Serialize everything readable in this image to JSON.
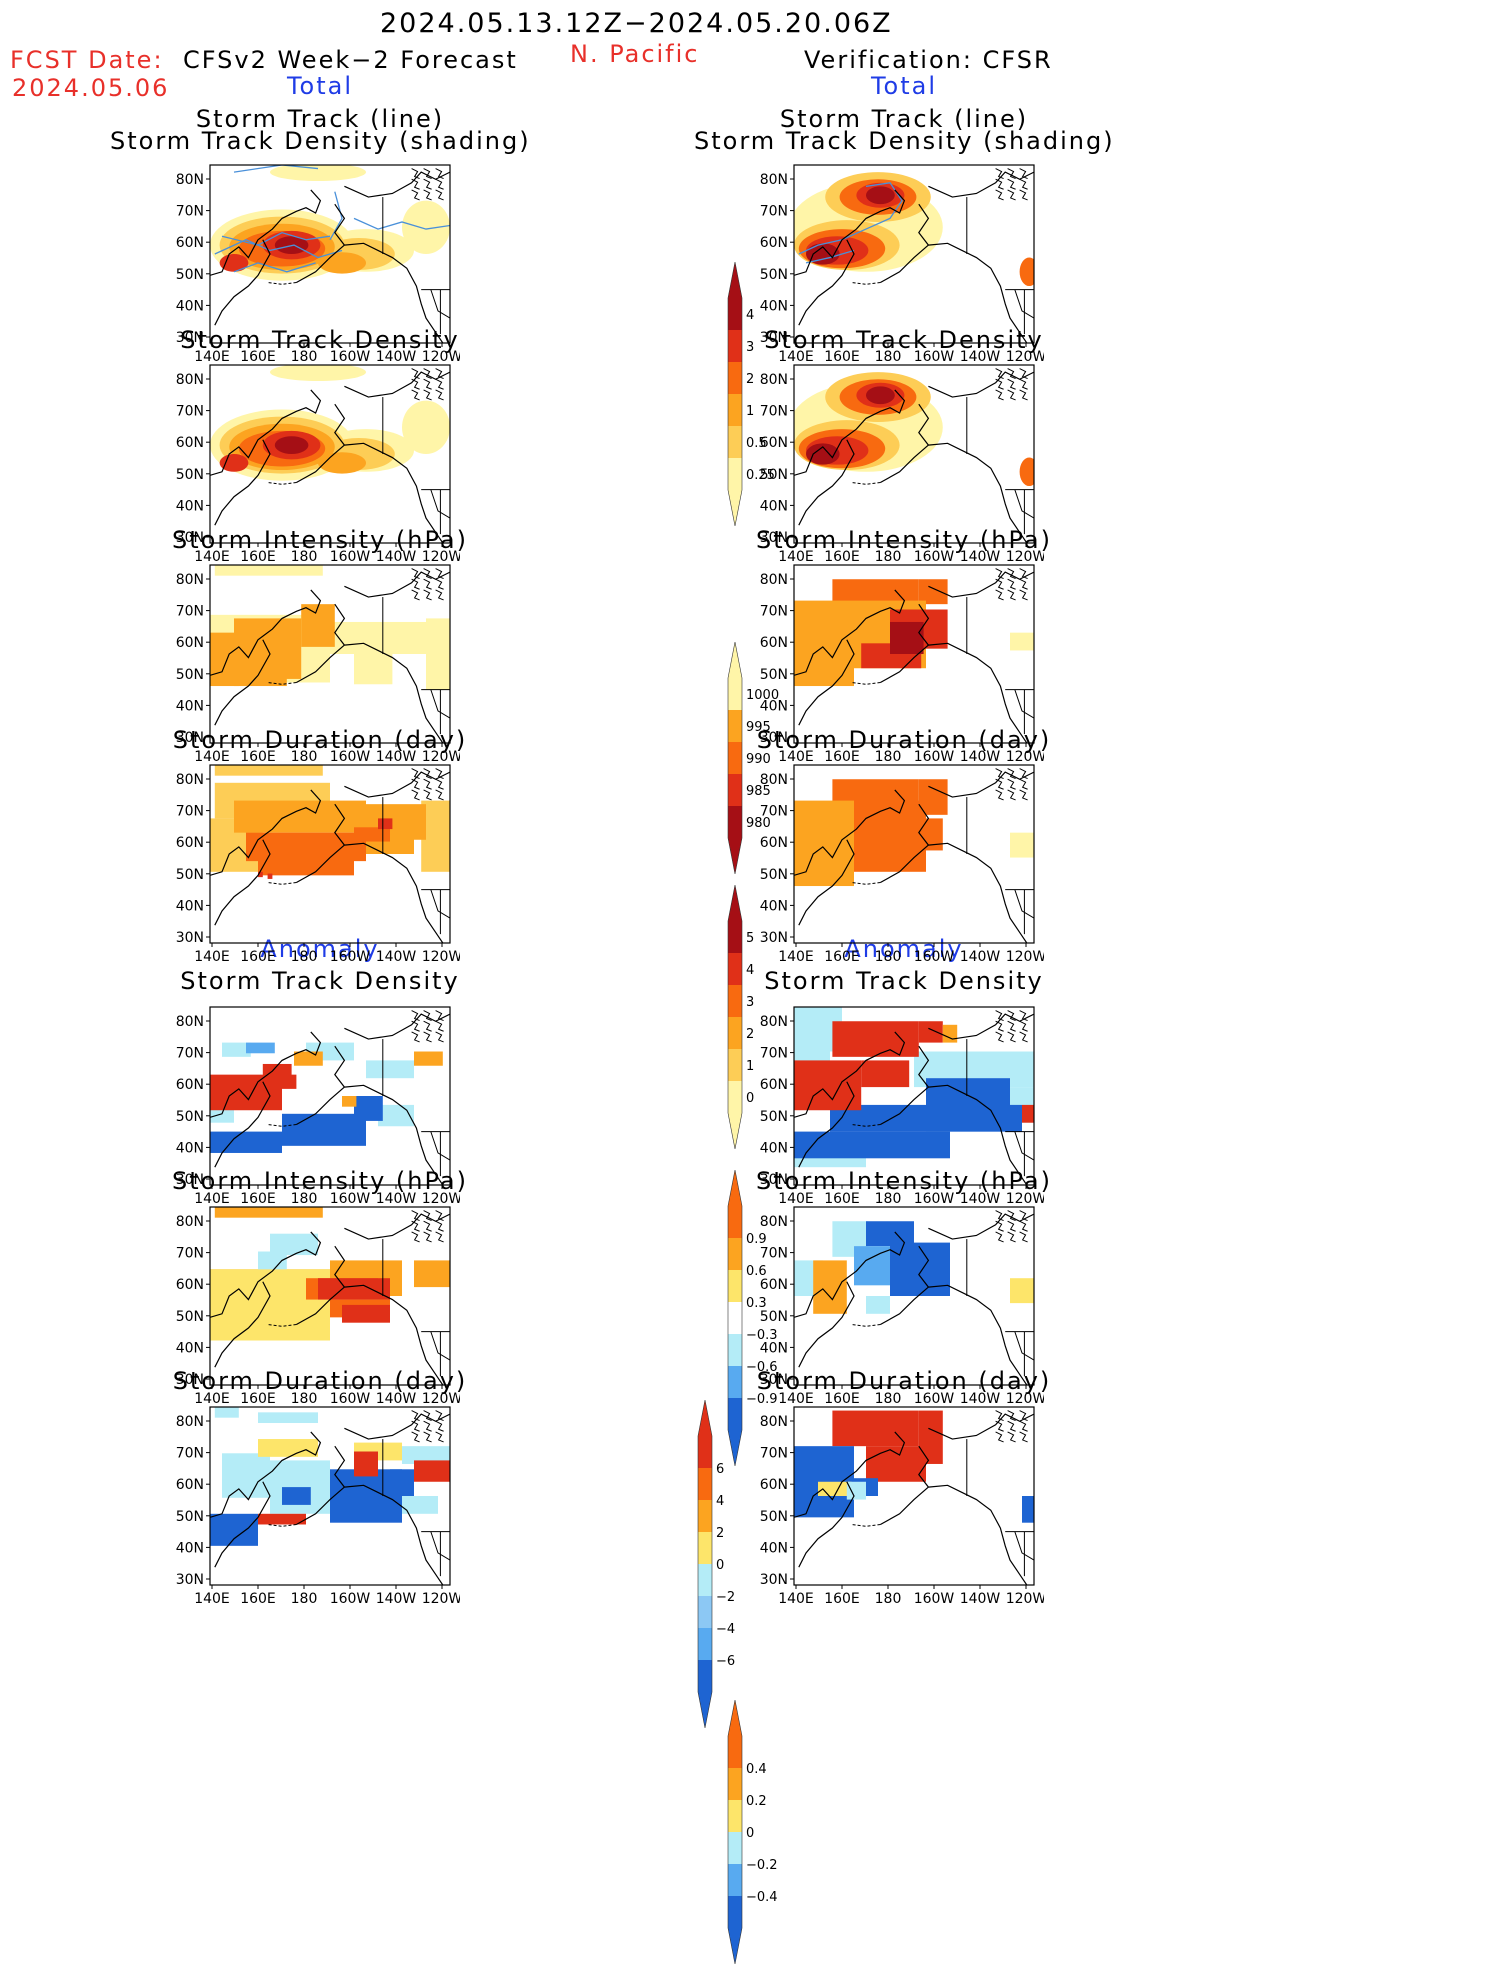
{
  "header": {
    "date_range": "2024.05.13.12Z−2024.05.20.06Z",
    "fcst_label": "FCST Date:",
    "fcst_date": "2024.05.06",
    "left_title": "CFSv2 Week−2 Forecast",
    "region": "N. Pacific",
    "right_title": "Verification: CFSR",
    "total_left": "Total",
    "total_right": "Total",
    "anomaly_left": "Anomaly",
    "anomaly_right": "Anomaly"
  },
  "panel_titles": {
    "track": [
      "Storm Track (line)",
      "Storm Track Density (shading)"
    ],
    "density": "Storm Track Density",
    "intensity": "Storm Intensity (hPa)",
    "duration": "Storm Duration (day)"
  },
  "axes": {
    "lat_labels": [
      "80N",
      "70N",
      "60N",
      "50N",
      "40N",
      "30N"
    ],
    "lon_labels": [
      "140E",
      "160E",
      "180",
      "160W",
      "140W",
      "120W"
    ]
  },
  "colorbars": [
    {
      "name": "total-density",
      "labels": [
        "4",
        "3",
        "2",
        "1",
        "0.5",
        "0.25"
      ],
      "colors": [
        "#a50f15",
        "#e03018",
        "#f86a10",
        "#fca420",
        "#fdcd56",
        "#fff5a8"
      ],
      "end": "both-top"
    },
    {
      "name": "total-intensity",
      "labels": [
        "1000",
        "995",
        "990",
        "985",
        "980"
      ],
      "colors": [
        "#fff5a8",
        "#fca420",
        "#f86a10",
        "#e03018",
        "#a50f15"
      ],
      "end": "both-bottom"
    },
    {
      "name": "total-duration",
      "labels": [
        "5",
        "4",
        "3",
        "2",
        "1",
        "0"
      ],
      "colors": [
        "#a50f15",
        "#e03018",
        "#f86a10",
        "#fca420",
        "#fdcd56",
        "#fff5a8"
      ],
      "end": "both-top"
    },
    {
      "name": "anom-density",
      "labels": [
        "0.9",
        "0.6",
        "0.3",
        "−0.3",
        "−0.6",
        "−0.9"
      ],
      "colors": [
        "#f86a10",
        "#fca420",
        "#fde56a",
        "#ffffff",
        "#b4ecf7",
        "#58aaf0",
        "#1e64d2"
      ],
      "end": "diverging"
    },
    {
      "name": "anom-intensity",
      "labels": [
        "6",
        "4",
        "2",
        "0",
        "−2",
        "−4",
        "−6"
      ],
      "colors": [
        "#e03018",
        "#f86a10",
        "#fca420",
        "#fde56a",
        "#b4ecf7",
        "#8cc8f4",
        "#58aaf0",
        "#1e64d2"
      ],
      "end": "diverging"
    },
    {
      "name": "anom-duration",
      "labels": [
        "0.4",
        "0.2",
        "0",
        "−0.2",
        "−0.4"
      ],
      "colors": [
        "#f86a10",
        "#fca420",
        "#fde56a",
        "#b4ecf7",
        "#58aaf0",
        "#1e64d2"
      ],
      "end": "diverging"
    }
  ],
  "colors": {
    "dark_red": "#a50f15",
    "red": "#e03018",
    "orange": "#f86a10",
    "light_orange": "#fca420",
    "yellow": "#fdcd56",
    "pale_yellow": "#fff5a8",
    "light_blue": "#b4ecf7",
    "mid_blue": "#58aaf0",
    "blue": "#1e64d2",
    "track_line": "#4a90d9"
  }
}
